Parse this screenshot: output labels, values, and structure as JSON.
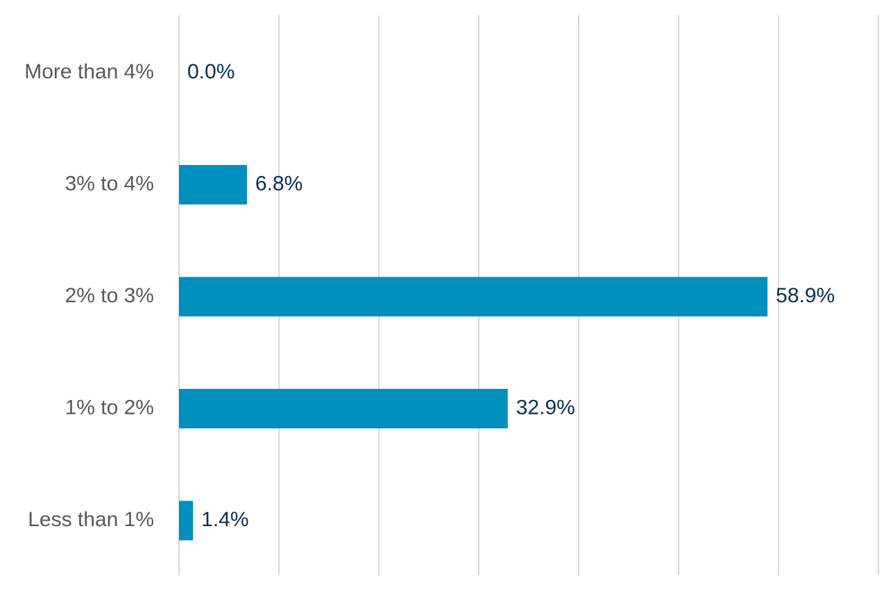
{
  "chart_data": {
    "type": "bar",
    "orientation": "horizontal",
    "categories": [
      "More than 4%",
      "3% to 4%",
      "2% to 3%",
      "1% to 2%",
      "Less than 1%"
    ],
    "values": [
      0.0,
      6.8,
      58.9,
      32.9,
      1.4
    ],
    "data_labels": [
      "0.0%",
      "6.8%",
      "58.9%",
      "32.9%",
      "1.4%"
    ],
    "title": "",
    "xlabel": "",
    "ylabel": "",
    "xlim": [
      0,
      70
    ],
    "grid": "vertical gridlines on",
    "legend": "none",
    "bar_color": "#0090bd",
    "label_color": "#0b2f4f",
    "category_color": "#595959",
    "grid_color": "#d9d9d9"
  }
}
